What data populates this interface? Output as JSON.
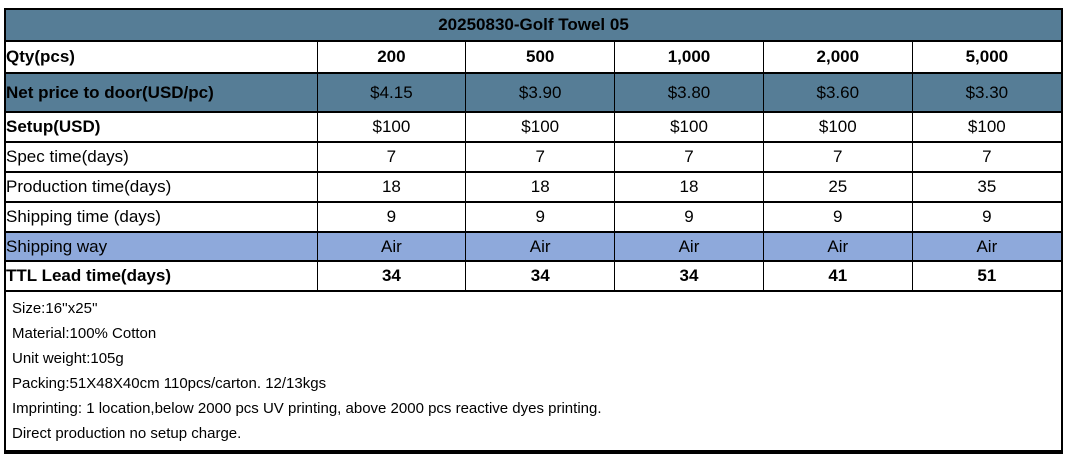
{
  "title": "20250830-Golf Towel 05",
  "colors": {
    "steel_blue": "#567D96",
    "light_blue": "#8EA9DB",
    "border": "#000000"
  },
  "table": {
    "rows": [
      {
        "label": "Qty(pcs)",
        "values": [
          "200",
          "500",
          "1,000",
          "2,000",
          "5,000"
        ]
      },
      {
        "label": "Net price to door(USD/pc)",
        "values": [
          "$4.15",
          "$3.90",
          "$3.80",
          "$3.60",
          "$3.30"
        ]
      },
      {
        "label": "Setup(USD)",
        "values": [
          "$100",
          "$100",
          "$100",
          "$100",
          "$100"
        ]
      },
      {
        "label": "Spec time(days)",
        "values": [
          "7",
          "7",
          "7",
          "7",
          "7"
        ]
      },
      {
        "label": "Production time(days)",
        "values": [
          "18",
          "18",
          "18",
          "25",
          "35"
        ]
      },
      {
        "label": "Shipping time (days)",
        "values": [
          "9",
          "9",
          "9",
          "9",
          "9"
        ]
      },
      {
        "label": "Shipping way",
        "values": [
          "Air",
          "Air",
          "Air",
          "Air",
          "Air"
        ]
      },
      {
        "label": "TTL Lead time(days)",
        "values": [
          "34",
          "34",
          "34",
          "41",
          "51"
        ]
      }
    ]
  },
  "notes": [
    "Size:16''x25''",
    "Material:100% Cotton",
    "Unit weight:105g",
    "Packing:51X48X40cm 110pcs/carton. 12/13kgs",
    "Imprinting: 1 location,below 2000 pcs UV printing, above 2000 pcs reactive dyes printing.",
    "Direct production no setup charge."
  ]
}
